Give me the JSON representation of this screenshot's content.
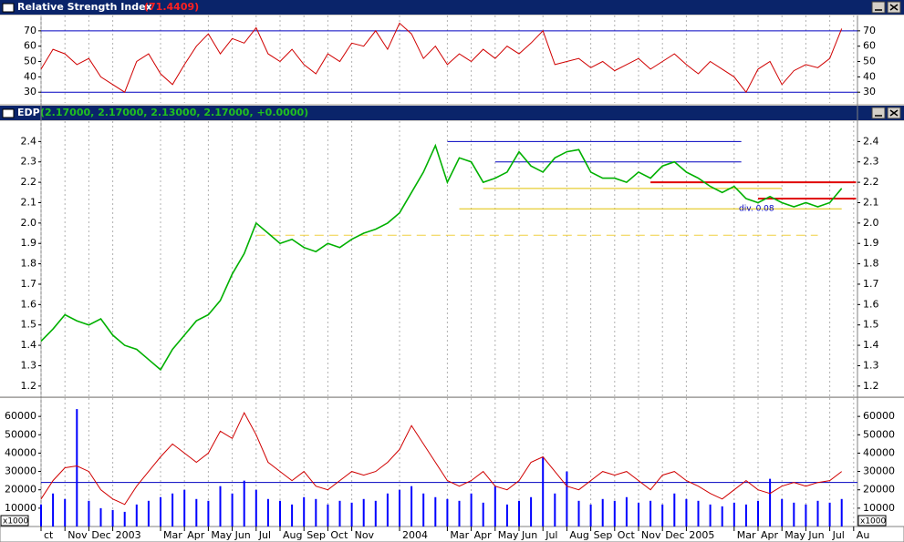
{
  "chart_data": [
    {
      "type": "line",
      "title": "Relative Strength Index",
      "title_value": "(71.4409)",
      "x": [
        0,
        0.5,
        1,
        1.5,
        2,
        2.5,
        3,
        3.5,
        4,
        4.5,
        5,
        5.5,
        6,
        6.5,
        7,
        7.5,
        8,
        8.5,
        9,
        9.5,
        10,
        10.5,
        11,
        11.5,
        12,
        12.5,
        13,
        13.5,
        14,
        14.5,
        15,
        15.5,
        16,
        16.5,
        17,
        17.5,
        18,
        18.5,
        19,
        19.5,
        20,
        20.5,
        21,
        21.5,
        22,
        22.5,
        23,
        23.5,
        24,
        24.5,
        25,
        25.5,
        26,
        26.5,
        27,
        27.5,
        28,
        28.5,
        29,
        29.5,
        30,
        30.5,
        31,
        31.5,
        32,
        32.5,
        33,
        33.5
      ],
      "series": [
        {
          "color": "#d00000",
          "values": [
            45,
            58,
            55,
            48,
            52,
            40,
            35,
            30,
            50,
            55,
            42,
            35,
            48,
            60,
            68,
            55,
            65,
            62,
            72,
            55,
            50,
            58,
            48,
            42,
            55,
            50,
            62,
            60,
            70,
            58,
            75,
            68,
            52,
            60,
            48,
            55,
            50,
            58,
            52,
            60,
            55,
            62,
            70,
            48,
            50,
            52,
            46,
            50,
            44,
            48,
            52,
            45,
            50,
            55,
            48,
            42,
            50,
            45,
            40,
            30,
            45,
            50,
            35,
            44,
            48,
            46,
            52,
            71.4409
          ]
        }
      ],
      "levels": [
        70,
        30
      ],
      "level_color": "#0000c0",
      "xlim": [
        0,
        34.16
      ],
      "ylim": [
        23,
        80
      ],
      "yticks": [
        30,
        40,
        50,
        60,
        70
      ]
    },
    {
      "type": "line",
      "title": "EDP",
      "title_value": "(2.17000, 2.17000, 2.13000, 2.17000, +0.0000)",
      "x": [
        0,
        0.5,
        1,
        1.5,
        2,
        2.5,
        3,
        3.5,
        4,
        4.5,
        5,
        5.5,
        6,
        6.5,
        7,
        7.5,
        8,
        8.5,
        9,
        9.5,
        10,
        10.5,
        11,
        11.5,
        12,
        12.5,
        13,
        13.5,
        14,
        14.5,
        15,
        15.5,
        16,
        16.5,
        17,
        17.5,
        18,
        18.5,
        19,
        19.5,
        20,
        20.5,
        21,
        21.5,
        22,
        22.5,
        23,
        23.5,
        24,
        24.5,
        25,
        25.5,
        26,
        26.5,
        27,
        27.5,
        28,
        28.5,
        29,
        29.5,
        30,
        30.5,
        31,
        31.5,
        32,
        32.5,
        33,
        33.5
      ],
      "series": [
        {
          "color": "#00b000",
          "values": [
            1.42,
            1.48,
            1.55,
            1.52,
            1.5,
            1.53,
            1.45,
            1.4,
            1.38,
            1.33,
            1.28,
            1.38,
            1.45,
            1.52,
            1.55,
            1.62,
            1.75,
            1.85,
            2.0,
            1.95,
            1.9,
            1.92,
            1.88,
            1.86,
            1.9,
            1.88,
            1.92,
            1.95,
            1.97,
            2.0,
            2.05,
            2.15,
            2.25,
            2.38,
            2.2,
            2.32,
            2.3,
            2.2,
            2.22,
            2.25,
            2.35,
            2.28,
            2.25,
            2.32,
            2.35,
            2.36,
            2.25,
            2.22,
            2.22,
            2.2,
            2.25,
            2.22,
            2.28,
            2.3,
            2.25,
            2.22,
            2.18,
            2.15,
            2.18,
            2.12,
            2.1,
            2.13,
            2.1,
            2.08,
            2.1,
            2.08,
            2.1,
            2.17
          ]
        }
      ],
      "lines": [
        {
          "value": 2.4,
          "x": [
            17,
            29.3
          ],
          "color": "#0000c0"
        },
        {
          "value": 2.3,
          "x": [
            19,
            29.3
          ],
          "color": "#0000c0"
        },
        {
          "value": 2.17,
          "x": [
            18.5,
            31
          ],
          "color": "#e0c000"
        },
        {
          "value": 2.07,
          "x": [
            17.5,
            33.5
          ],
          "color": "#e0c000"
        },
        {
          "value": 1.94,
          "x": [
            9,
            32.5
          ],
          "color": "#f0d040",
          "dashed": true
        },
        {
          "value": 2.2,
          "x": [
            25.5,
            34.1
          ],
          "color": "#e00000"
        },
        {
          "value": 2.12,
          "x": [
            30,
            34.1
          ],
          "color": "#e00000"
        }
      ],
      "annotation": "div. 0.08",
      "xlim": [
        0,
        34.16
      ],
      "ylim": [
        1.15,
        2.5
      ],
      "yticks": [
        1.2,
        1.3,
        1.4,
        1.5,
        1.6,
        1.7,
        1.8,
        1.9,
        {
          "value": 2,
          "label": "2.0"
        },
        2.1,
        2.2,
        2.3,
        2.4
      ]
    },
    {
      "type": "bar",
      "unit": "x1000",
      "x": [
        0,
        0.5,
        1,
        1.5,
        2,
        2.5,
        3,
        3.5,
        4,
        4.5,
        5,
        5.5,
        6,
        6.5,
        7,
        7.5,
        8,
        8.5,
        9,
        9.5,
        10,
        10.5,
        11,
        11.5,
        12,
        12.5,
        13,
        13.5,
        14,
        14.5,
        15,
        15.5,
        16,
        16.5,
        17,
        17.5,
        18,
        18.5,
        19,
        19.5,
        20,
        20.5,
        21,
        21.5,
        22,
        22.5,
        23,
        23.5,
        24,
        24.5,
        25,
        25.5,
        26,
        26.5,
        27,
        27.5,
        28,
        28.5,
        29,
        29.5,
        30,
        30.5,
        31,
        31.5,
        32,
        32.5,
        33,
        33.5
      ],
      "series": [
        {
          "color": "#0000ff",
          "values": [
            12000,
            18000,
            15000,
            64000,
            14000,
            10000,
            9000,
            8000,
            12000,
            14000,
            16000,
            18000,
            20000,
            15000,
            14000,
            22000,
            18000,
            25000,
            20000,
            15000,
            14000,
            12000,
            16000,
            15000,
            12000,
            14000,
            13000,
            15000,
            14000,
            18000,
            20000,
            22000,
            18000,
            16000,
            15000,
            14000,
            18000,
            13000,
            22000,
            12000,
            14000,
            16000,
            38000,
            18000,
            30000,
            14000,
            12000,
            15000,
            14000,
            16000,
            13000,
            14000,
            12000,
            18000,
            15000,
            14000,
            12000,
            11000,
            13000,
            12000,
            14000,
            26000,
            15000,
            13000,
            12000,
            14000,
            13000,
            15000
          ]
        },
        {
          "color": "#d00000",
          "kind": "line",
          "values": [
            15000,
            25000,
            32000,
            33000,
            30000,
            20000,
            15000,
            12000,
            22000,
            30000,
            38000,
            45000,
            40000,
            35000,
            40000,
            52000,
            48000,
            62000,
            50000,
            35000,
            30000,
            25000,
            30000,
            22000,
            20000,
            25000,
            30000,
            28000,
            30000,
            35000,
            42000,
            55000,
            45000,
            35000,
            25000,
            22000,
            25000,
            30000,
            22000,
            20000,
            25000,
            35000,
            38000,
            30000,
            22000,
            20000,
            25000,
            30000,
            28000,
            30000,
            25000,
            20000,
            28000,
            30000,
            25000,
            22000,
            18000,
            15000,
            20000,
            25000,
            20000,
            18000,
            22000,
            24000,
            22000,
            24000,
            25000,
            30000
          ]
        }
      ],
      "levels": [
        24000
      ],
      "level_color": "#0000c0",
      "xlim": [
        0,
        34.16
      ],
      "ylim": [
        0,
        70000
      ],
      "yticks": [
        10000,
        20000,
        30000,
        40000,
        50000,
        60000
      ],
      "xticks": [
        {
          "value": 0,
          "label": "ct"
        },
        {
          "value": 1,
          "label": "Nov"
        },
        {
          "value": 2,
          "label": "Dec"
        },
        {
          "value": 3,
          "label": "2003"
        },
        {
          "value": 5,
          "label": "Mar"
        },
        {
          "value": 6,
          "label": "Apr"
        },
        {
          "value": 7,
          "label": "May"
        },
        {
          "value": 8,
          "label": "Jun"
        },
        {
          "value": 9,
          "label": "Jul"
        },
        {
          "value": 10,
          "label": "Aug"
        },
        {
          "value": 11,
          "label": "Sep"
        },
        {
          "value": 12,
          "label": "Oct"
        },
        {
          "value": 13,
          "label": "Nov"
        },
        {
          "value": 15,
          "label": "2004"
        },
        {
          "value": 17,
          "label": "Mar"
        },
        {
          "value": 18,
          "label": "Apr"
        },
        {
          "value": 19,
          "label": "May"
        },
        {
          "value": 20,
          "label": "Jun"
        },
        {
          "value": 21,
          "label": "Jul"
        },
        {
          "value": 22,
          "label": "Aug"
        },
        {
          "value": 23,
          "label": "Sep"
        },
        {
          "value": 24,
          "label": "Oct"
        },
        {
          "value": 25,
          "label": "Nov"
        },
        {
          "value": 26,
          "label": "Dec"
        },
        {
          "value": 27,
          "label": "2005"
        },
        {
          "value": 29,
          "label": "Mar"
        },
        {
          "value": 30,
          "label": "Apr"
        },
        {
          "value": 31,
          "label": "May"
        },
        {
          "value": 32,
          "label": "Jun"
        },
        {
          "value": 33,
          "label": "Jul"
        },
        {
          "value": 34,
          "label": "Au"
        }
      ]
    }
  ]
}
